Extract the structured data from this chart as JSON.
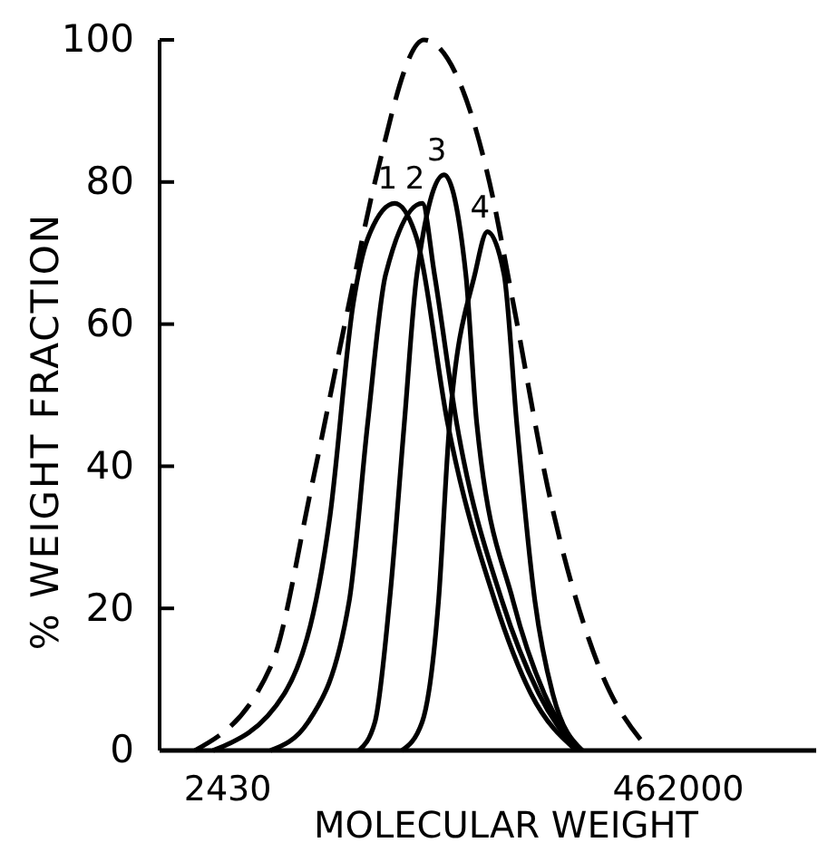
{
  "chart_data": {
    "type": "line",
    "xlabel": "MOLECULAR WEIGHT",
    "ylabel": "% WEIGHT FRACTION",
    "log": "x",
    "xlim": [
      1100,
      2300000
    ],
    "xticks": [
      2430,
      462000
    ],
    "ylim": [
      0,
      100
    ],
    "yticks": [
      0,
      20,
      40,
      60,
      80,
      100
    ],
    "grid": false,
    "legend": false,
    "marker": "none",
    "series": [
      {
        "color": "#000000",
        "line_style": "dashed",
        "x": [
          1660,
          4040,
          6440,
          10000,
          13500,
          23900,
          51200,
          67500,
          101000,
          182000,
          330000
        ],
        "values": [
          0,
          12,
          37,
          63,
          80,
          100,
          80,
          63,
          37,
          12,
          0
        ]
      },
      {
        "name": "1",
        "color": "#000000",
        "line_style": "solid",
        "x": [
          2050,
          4700,
          8000,
          10500,
          12400,
          17000,
          22000,
          31500,
          54600,
          83000,
          141000
        ],
        "values": [
          0,
          8,
          33,
          63,
          72,
          77,
          72,
          46,
          21,
          8,
          0
        ]
      },
      {
        "name": "2",
        "color": "#000000",
        "line_style": "solid",
        "x": [
          4000,
          6200,
          10000,
          12400,
          15300,
          23400,
          27000,
          35000,
          59400,
          91000,
          141000
        ],
        "values": [
          0,
          4,
          21,
          46,
          67,
          77,
          67,
          46,
          21,
          8,
          0
        ]
      },
      {
        "name": "3",
        "color": "#000000",
        "line_style": "solid",
        "x": [
          11200,
          13500,
          16000,
          19000,
          22000,
          30200,
          38900,
          44200,
          67500,
          97000,
          148000
        ],
        "values": [
          0,
          4,
          21,
          46,
          67,
          81,
          67,
          46,
          21,
          8,
          0
        ]
      },
      {
        "name": "4",
        "color": "#000000",
        "line_style": "solid",
        "x": [
          18500,
          23400,
          28300,
          32200,
          43200,
          50000,
          60700,
          70400,
          87000,
          107000,
          151000
        ],
        "values": [
          0,
          4,
          21,
          46,
          67,
          73,
          67,
          46,
          21,
          8,
          0
        ]
      }
    ]
  }
}
